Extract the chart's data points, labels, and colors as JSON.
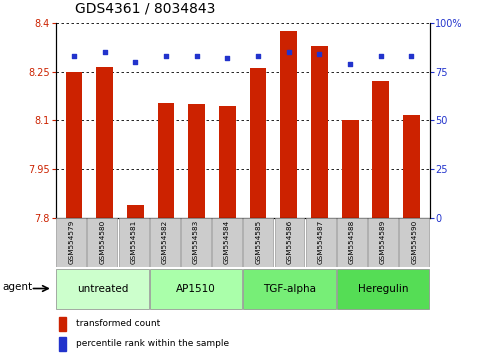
{
  "title": "GDS4361 / 8034843",
  "samples": [
    "GSM554579",
    "GSM554580",
    "GSM554581",
    "GSM554582",
    "GSM554583",
    "GSM554584",
    "GSM554585",
    "GSM554586",
    "GSM554587",
    "GSM554588",
    "GSM554589",
    "GSM554590"
  ],
  "bar_values": [
    8.25,
    8.265,
    7.84,
    8.155,
    8.15,
    8.145,
    8.26,
    8.375,
    8.33,
    8.1,
    8.22,
    8.115
  ],
  "percentile_values": [
    83,
    85,
    80,
    83,
    83,
    82,
    83,
    85,
    84,
    79,
    83,
    83
  ],
  "ylim_left": [
    7.8,
    8.4
  ],
  "ylim_right": [
    0,
    100
  ],
  "yticks_left": [
    7.8,
    7.95,
    8.1,
    8.25,
    8.4
  ],
  "yticks_left_labels": [
    "7.8",
    "7.95",
    "8.1",
    "8.25",
    "8.4"
  ],
  "yticks_right": [
    0,
    25,
    50,
    75,
    100
  ],
  "yticks_right_labels": [
    "0",
    "25",
    "50",
    "75",
    "100%"
  ],
  "bar_color": "#cc2200",
  "percentile_color": "#2233cc",
  "background_xtick": "#cccccc",
  "groups": [
    {
      "label": "untreated",
      "start": 0,
      "end": 3,
      "color": "#ccffcc"
    },
    {
      "label": "AP1510",
      "start": 3,
      "end": 6,
      "color": "#aaffaa"
    },
    {
      "label": "TGF-alpha",
      "start": 6,
      "end": 9,
      "color": "#77ee77"
    },
    {
      "label": "Heregulin",
      "start": 9,
      "end": 12,
      "color": "#55dd55"
    }
  ],
  "agent_label": "agent",
  "legend_bar_label": "transformed count",
  "legend_pct_label": "percentile rank within the sample",
  "bar_width": 0.55,
  "title_fontsize": 10,
  "tick_fontsize": 7,
  "label_fontsize": 7.5
}
